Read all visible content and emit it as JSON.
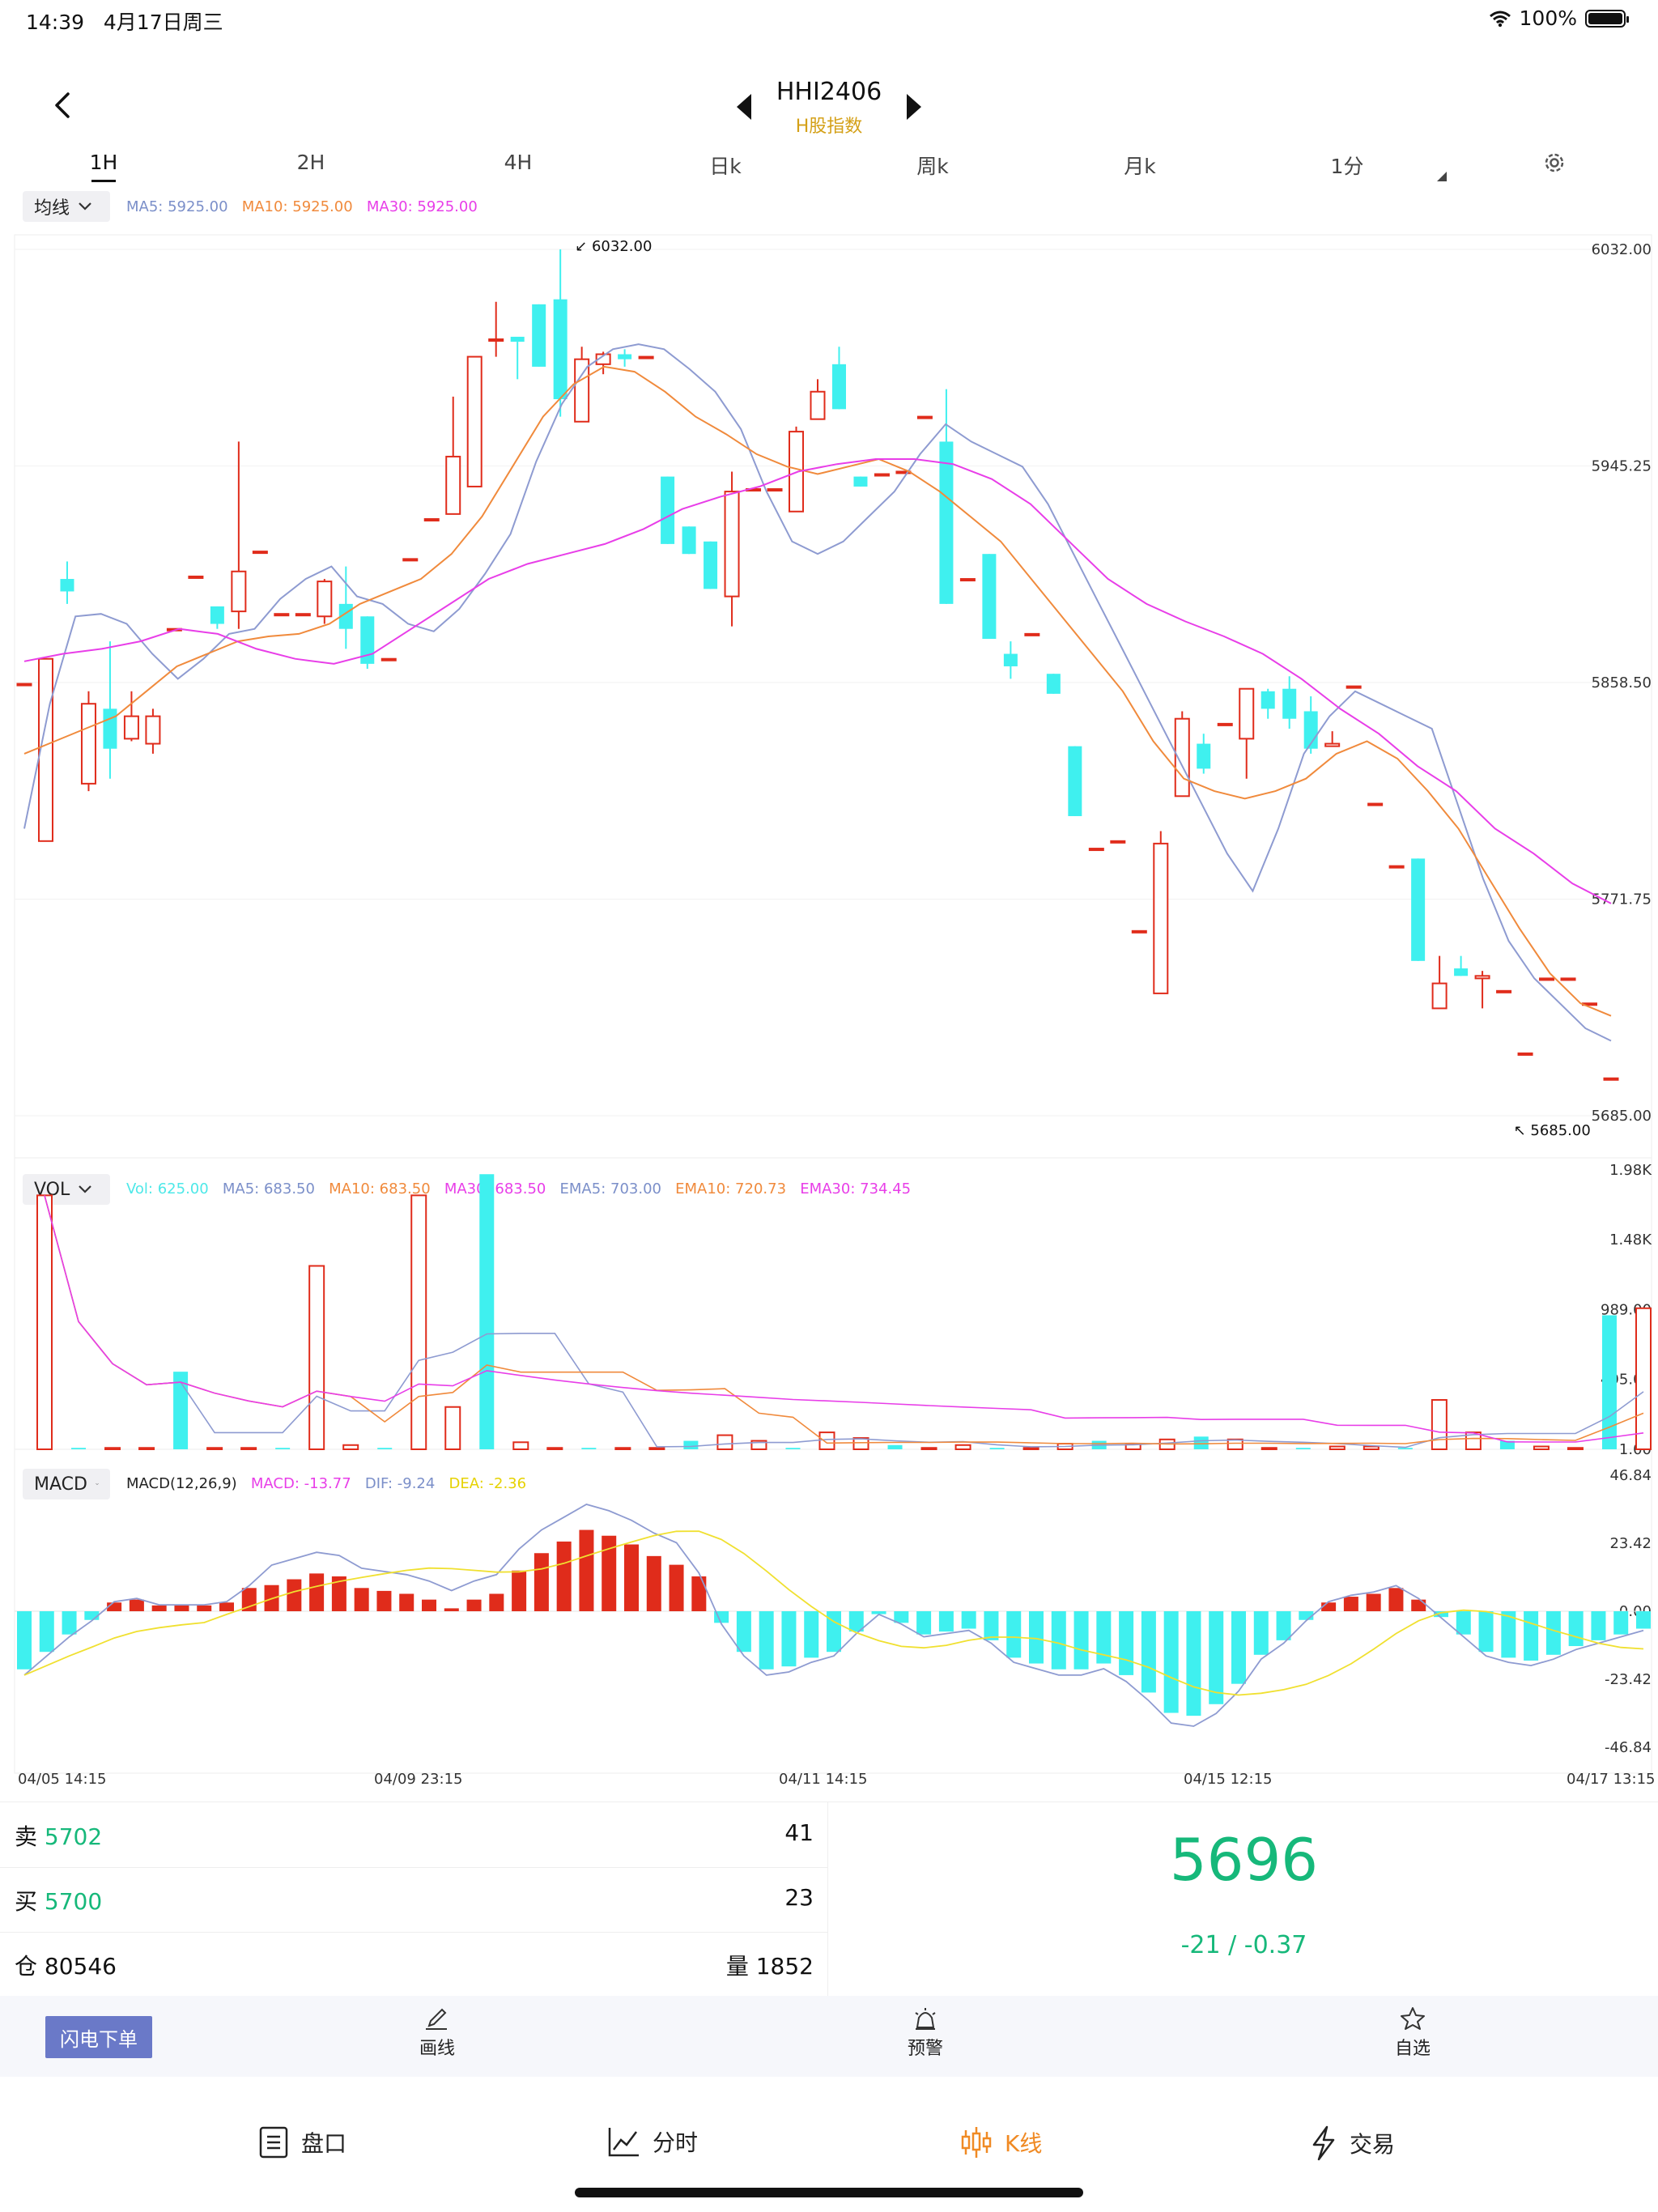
{
  "status": {
    "time": "14:39",
    "date": "4月17日周三",
    "battery": "100%"
  },
  "header": {
    "title": "HHI2406",
    "subtitle": "H股指数"
  },
  "periods": [
    {
      "label": "1H",
      "active": true
    },
    {
      "label": "2H"
    },
    {
      "label": "4H"
    },
    {
      "label": "日k"
    },
    {
      "label": "周k"
    },
    {
      "label": "月k"
    },
    {
      "label": "1分"
    }
  ],
  "main_chart": {
    "selector": "均线",
    "legend": [
      {
        "text": "MA5: 5925.00",
        "color": "#7b8fc9"
      },
      {
        "text": "MA10: 5925.00",
        "color": "#f08a3c"
      },
      {
        "text": "MA30: 5925.00",
        "color": "#e83ee8"
      }
    ],
    "y_ticks": [
      "6032.00",
      "5945.25",
      "5858.50",
      "5771.75",
      "5685.00"
    ],
    "max_label": "6032.00",
    "min_label": "5685.00"
  },
  "vol_chart": {
    "selector": "VOL",
    "legend": [
      {
        "text": "Vol: 625.00",
        "color": "#4de8e8"
      },
      {
        "text": "MA5: 683.50",
        "color": "#7b8fc9"
      },
      {
        "text": "MA10: 683.50",
        "color": "#f08a3c"
      },
      {
        "text": "MA30: 683.50",
        "color": "#e83ee8"
      },
      {
        "text": "EMA5: 703.00",
        "color": "#7b8fc9"
      },
      {
        "text": "EMA10: 720.73",
        "color": "#f08a3c"
      },
      {
        "text": "EMA30: 734.45",
        "color": "#e83ee8"
      }
    ],
    "y_ticks": [
      "1.98K",
      "1.48K",
      "989.00",
      "495.00",
      "1.00"
    ]
  },
  "macd_chart": {
    "selector": "MACD",
    "legend": [
      {
        "text": "MACD(12,26,9)",
        "color": "#222222"
      },
      {
        "text": "MACD: -13.77",
        "color": "#e83ee8"
      },
      {
        "text": "DIF: -9.24",
        "color": "#7b8fc9"
      },
      {
        "text": "DEA: -2.36",
        "color": "#f0e030"
      }
    ],
    "y_ticks": [
      "46.84",
      "23.42",
      "0.00",
      "-23.42",
      "-46.84"
    ]
  },
  "x_ticks": [
    "04/05 14:15",
    "04/09 23:15",
    "04/11 14:15",
    "04/15 12:15",
    "04/17 13:15"
  ],
  "chart_data": {
    "type": "candlestick",
    "x_range": [
      "04/05 14:15",
      "04/17 13:15"
    ],
    "ylim": [
      5685.0,
      6032.0
    ],
    "colors": {
      "up": "#e02c1b",
      "down": "#3ff0ef"
    },
    "candles": [
      [
        5858,
        5858,
        5858,
        5858
      ],
      [
        5795,
        5868,
        5795,
        5868
      ],
      [
        5900,
        5895,
        5890,
        5907
      ],
      [
        5818,
        5850,
        5815,
        5855
      ],
      [
        5848,
        5832,
        5820,
        5875
      ],
      [
        5836,
        5845,
        5835,
        5855
      ],
      [
        5834,
        5845,
        5830,
        5848
      ],
      [
        5880,
        5880,
        5880,
        5880
      ],
      [
        5901,
        5901,
        5901,
        5901
      ],
      [
        5889,
        5882,
        5880,
        5889
      ],
      [
        5887,
        5903,
        5880,
        5955
      ],
      [
        5911,
        5911,
        5911,
        5911
      ],
      [
        5886,
        5886,
        5886,
        5886
      ],
      [
        5886,
        5886,
        5886,
        5886
      ],
      [
        5885,
        5899,
        5882,
        5900
      ],
      [
        5890,
        5880,
        5872,
        5905
      ],
      [
        5885,
        5866,
        5864,
        5885
      ],
      [
        5868,
        5868,
        5868,
        5868
      ],
      [
        5908,
        5908,
        5908,
        5908
      ],
      [
        5924,
        5924,
        5924,
        5924
      ],
      [
        5926,
        5949,
        5926,
        5973
      ],
      [
        5937,
        5989,
        5937,
        5989
      ],
      [
        5996,
        5996,
        5989,
        6011
      ],
      [
        5997,
        5995,
        5980,
        5995
      ],
      [
        6010,
        5985,
        5985,
        6010
      ],
      [
        6012,
        5972,
        5965,
        6032
      ],
      [
        5963,
        5988,
        5963,
        5993
      ],
      [
        5986,
        5990,
        5982,
        5991
      ],
      [
        5990,
        5988,
        5985,
        5992
      ],
      [
        5989,
        5989,
        5989,
        5989
      ],
      [
        5941,
        5914,
        5914,
        5941
      ],
      [
        5921,
        5910,
        5910,
        5921
      ],
      [
        5915,
        5896,
        5896,
        5915
      ],
      [
        5893,
        5935,
        5881,
        5943
      ],
      [
        5936,
        5936,
        5936,
        5936
      ],
      [
        5936,
        5936,
        5936,
        5936
      ],
      [
        5927,
        5959,
        5927,
        5961
      ],
      [
        5964,
        5975,
        5964,
        5980
      ],
      [
        5986,
        5968,
        5968,
        5993
      ],
      [
        5941,
        5937,
        5937,
        5941
      ],
      [
        5942,
        5942,
        5942,
        5942
      ],
      [
        5943,
        5943,
        5943,
        5943
      ],
      [
        5965,
        5965,
        5965,
        5965
      ],
      [
        5955,
        5890,
        5890,
        5976
      ],
      [
        5900,
        5900,
        5900,
        5900
      ],
      [
        5910,
        5876,
        5876,
        5910
      ],
      [
        5870,
        5865,
        5860,
        5875
      ],
      [
        5878,
        5878,
        5878,
        5878
      ],
      [
        5862,
        5854,
        5854,
        5862
      ],
      [
        5833,
        5805,
        5805,
        5833
      ],
      [
        5792,
        5792,
        5792,
        5792
      ],
      [
        5795,
        5795,
        5795,
        5795
      ],
      [
        5759,
        5759,
        5759,
        5759
      ],
      [
        5734,
        5794,
        5734,
        5799
      ],
      [
        5813,
        5844,
        5813,
        5847
      ],
      [
        5834,
        5824,
        5822,
        5838
      ],
      [
        5842,
        5842,
        5842,
        5842
      ],
      [
        5836,
        5856,
        5820,
        5856
      ],
      [
        5855,
        5848,
        5844,
        5856
      ],
      [
        5856,
        5844,
        5840,
        5861
      ],
      [
        5847,
        5832,
        5830,
        5853
      ],
      [
        5833,
        5834,
        5833,
        5839
      ],
      [
        5857,
        5857,
        5857,
        5857
      ],
      [
        5810,
        5810,
        5810,
        5810
      ],
      [
        5785,
        5785,
        5785,
        5785
      ],
      [
        5788,
        5747,
        5747,
        5788
      ],
      [
        5728,
        5738,
        5728,
        5749
      ],
      [
        5744,
        5741,
        5741,
        5749
      ],
      [
        5740,
        5741,
        5728,
        5743
      ],
      [
        5735,
        5735,
        5735,
        5735
      ],
      [
        5710,
        5710,
        5710,
        5710
      ],
      [
        5740,
        5740,
        5740,
        5740
      ],
      [
        5740,
        5740,
        5740,
        5740
      ],
      [
        5730,
        5730,
        5730,
        5730
      ],
      [
        5700,
        5700,
        5700,
        5700
      ]
    ],
    "ma5": [
      5800,
      5850,
      5885,
      5886,
      5882,
      5870,
      5860,
      5868,
      5878,
      5880,
      5892,
      5900,
      5905,
      5893,
      5890,
      5882,
      5879,
      5888,
      5902,
      5918,
      5947,
      5970,
      5985,
      5992,
      5994,
      5992,
      5984,
      5975,
      5960,
      5935,
      5915,
      5910,
      5915,
      5925,
      5935,
      5950,
      5962,
      5955,
      5950,
      5945,
      5930,
      5910,
      5890,
      5870,
      5850,
      5830,
      5810,
      5790,
      5775,
      5800,
      5830,
      5845,
      5855,
      5850,
      5845,
      5840,
      5810,
      5780,
      5755,
      5740,
      5730,
      5720,
      5715
    ],
    "ma10": [
      5830,
      5835,
      5840,
      5845,
      5855,
      5865,
      5870,
      5875,
      5877,
      5878,
      5882,
      5890,
      5895,
      5900,
      5910,
      5925,
      5945,
      5965,
      5978,
      5985,
      5983,
      5975,
      5965,
      5958,
      5950,
      5945,
      5942,
      5945,
      5948,
      5943,
      5935,
      5925,
      5915,
      5900,
      5885,
      5870,
      5855,
      5835,
      5820,
      5815,
      5812,
      5815,
      5820,
      5830,
      5835,
      5828,
      5815,
      5800,
      5780,
      5760,
      5742,
      5730,
      5725
    ],
    "ma30": [
      5867,
      5870,
      5872,
      5875,
      5880,
      5878,
      5872,
      5868,
      5866,
      5870,
      5880,
      5890,
      5900,
      5906,
      5910,
      5914,
      5920,
      5928,
      5933,
      5937,
      5943,
      5946,
      5948,
      5948,
      5946,
      5940,
      5930,
      5915,
      5900,
      5890,
      5883,
      5877,
      5870,
      5860,
      5848,
      5838,
      5825,
      5815,
      5800,
      5790,
      5778,
      5770
    ],
    "volume": [
      1800,
      10,
      10,
      10,
      550,
      10,
      10,
      10,
      1300,
      30,
      10,
      1800,
      300,
      1950,
      50,
      10,
      10,
      10,
      10,
      60,
      100,
      60,
      10,
      120,
      80,
      30,
      10,
      30,
      10,
      10,
      40,
      60,
      40,
      70,
      90,
      70,
      10,
      10,
      20,
      20,
      10,
      350,
      120,
      60,
      20,
      10,
      950,
      1000
    ],
    "macd": [
      -20,
      -14,
      -8,
      -3,
      3,
      4,
      2,
      2,
      2,
      3,
      8,
      9,
      11,
      13,
      12,
      8,
      7,
      6,
      4,
      1,
      4,
      6,
      14,
      20,
      24,
      28,
      26,
      23,
      19,
      16,
      12,
      -4,
      -14,
      -20,
      -19,
      -16,
      -14,
      -7,
      -1,
      -4,
      -8,
      -7,
      -6,
      -10,
      -16,
      -18,
      -20,
      -20,
      -18,
      -22,
      -28,
      -35,
      -36,
      -32,
      -25,
      -15,
      -10,
      -3,
      3,
      5,
      6,
      8,
      4,
      -2,
      -8,
      -14,
      -16,
      -17,
      -15,
      -12,
      -10,
      -8,
      -6
    ]
  },
  "quote": {
    "sell_label": "卖",
    "sell_price": "5702",
    "sell_qty": "41",
    "buy_label": "买",
    "buy_price": "5700",
    "buy_qty": "23",
    "oi_label": "仓",
    "oi_value": "80546",
    "vol_label": "量",
    "vol_value": "1852",
    "last_price": "5696",
    "change": "-21 / -0.37"
  },
  "toolbar": {
    "flash": "闪电下单",
    "draw": "画线",
    "alert": "预警",
    "watch": "自选"
  },
  "tabs": [
    {
      "label": "盘口",
      "icon": "order-book-icon"
    },
    {
      "label": "分时",
      "icon": "line-chart-icon"
    },
    {
      "label": "K线",
      "icon": "candlestick-icon",
      "active": true
    },
    {
      "label": "交易",
      "icon": "lightning-icon"
    }
  ]
}
